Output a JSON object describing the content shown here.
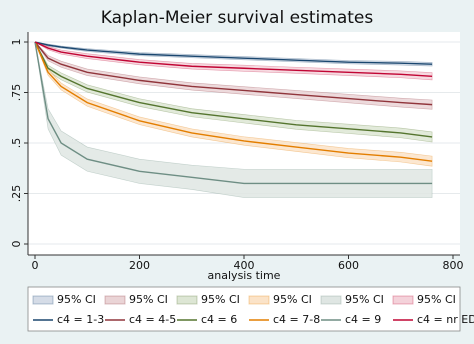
{
  "chart_data": {
    "type": "line",
    "title": "Kaplan-Meier survival estimates",
    "x_label": "analysis time",
    "x": [
      0,
      25,
      50,
      100,
      200,
      300,
      400,
      500,
      600,
      700,
      760
    ],
    "xlim": [
      0,
      800
    ],
    "xticks": [
      0,
      200,
      400,
      600,
      800
    ],
    "ylim": [
      0,
      1
    ],
    "yticks": [
      0,
      {
        "value": 0.25,
        "label": ".25"
      },
      {
        "value": 0.5,
        "label": ".5"
      },
      {
        "value": 0.75,
        "label": ".75"
      },
      1
    ],
    "grid": true,
    "series": [
      {
        "name": "c4 = 1-3",
        "color": "#1a476f",
        "ci_name": "95% CI",
        "ci_color": "#d5dce7",
        "values": [
          1,
          0.985,
          0.975,
          0.96,
          0.94,
          0.93,
          0.92,
          0.91,
          0.9,
          0.895,
          0.89
        ],
        "ci_lower": [
          1,
          0.98,
          0.97,
          0.953,
          0.932,
          0.922,
          0.912,
          0.902,
          0.892,
          0.886,
          0.881
        ],
        "ci_upper": [
          1,
          0.99,
          0.98,
          0.967,
          0.948,
          0.938,
          0.928,
          0.918,
          0.908,
          0.904,
          0.899
        ]
      },
      {
        "name": "c4 = 4-5",
        "color": "#90353b",
        "ci_name": "95% CI",
        "ci_color": "#ead4d6",
        "values": [
          1,
          0.92,
          0.89,
          0.85,
          0.81,
          0.78,
          0.76,
          0.74,
          0.72,
          0.7,
          0.69
        ],
        "ci_lower": [
          1,
          0.907,
          0.875,
          0.834,
          0.793,
          0.762,
          0.741,
          0.72,
          0.699,
          0.678,
          0.667
        ],
        "ci_upper": [
          1,
          0.933,
          0.905,
          0.866,
          0.827,
          0.798,
          0.779,
          0.76,
          0.741,
          0.722,
          0.713
        ]
      },
      {
        "name": "c4 = 6",
        "color": "#55752f",
        "ci_name": "95% CI",
        "ci_color": "#dde6d4",
        "values": [
          1,
          0.87,
          0.83,
          0.77,
          0.7,
          0.65,
          0.62,
          0.59,
          0.57,
          0.55,
          0.53
        ],
        "ci_lower": [
          1,
          0.855,
          0.813,
          0.752,
          0.681,
          0.63,
          0.599,
          0.568,
          0.547,
          0.526,
          0.505
        ],
        "ci_upper": [
          1,
          0.885,
          0.847,
          0.788,
          0.719,
          0.67,
          0.641,
          0.612,
          0.593,
          0.574,
          0.555
        ]
      },
      {
        "name": "c4 = 7-8",
        "color": "#e37e00",
        "ci_name": "95% CI",
        "ci_color": "#fbe3c8",
        "values": [
          1,
          0.85,
          0.78,
          0.7,
          0.61,
          0.55,
          0.51,
          0.48,
          0.45,
          0.43,
          0.41
        ],
        "ci_lower": [
          1,
          0.835,
          0.763,
          0.682,
          0.591,
          0.53,
          0.489,
          0.458,
          0.427,
          0.406,
          0.385
        ],
        "ci_upper": [
          1,
          0.865,
          0.797,
          0.718,
          0.629,
          0.57,
          0.531,
          0.502,
          0.473,
          0.454,
          0.435
        ]
      },
      {
        "name": "c4 = 9",
        "color": "#6e8e84",
        "ci_name": "95% CI",
        "ci_color": "#dfe6e3",
        "values": [
          1,
          0.62,
          0.5,
          0.42,
          0.36,
          0.33,
          0.3,
          0.3,
          0.3,
          0.3,
          0.3
        ],
        "ci_lower": [
          1,
          0.57,
          0.44,
          0.36,
          0.3,
          0.27,
          0.23,
          0.23,
          0.23,
          0.23,
          0.23
        ],
        "ci_upper": [
          1,
          0.67,
          0.56,
          0.48,
          0.42,
          0.39,
          0.37,
          0.37,
          0.37,
          0.37,
          0.37
        ]
      },
      {
        "name": "c4 = nr ED",
        "color": "#c10534",
        "ci_name": "95% CI",
        "ci_color": "#f4d2da",
        "values": [
          1,
          0.97,
          0.95,
          0.93,
          0.9,
          0.88,
          0.87,
          0.86,
          0.85,
          0.84,
          0.83
        ],
        "ci_lower": [
          1,
          0.962,
          0.94,
          0.918,
          0.887,
          0.866,
          0.855,
          0.845,
          0.834,
          0.823,
          0.812
        ],
        "ci_upper": [
          1,
          0.978,
          0.96,
          0.942,
          0.913,
          0.894,
          0.885,
          0.875,
          0.866,
          0.857,
          0.848
        ]
      }
    ]
  }
}
